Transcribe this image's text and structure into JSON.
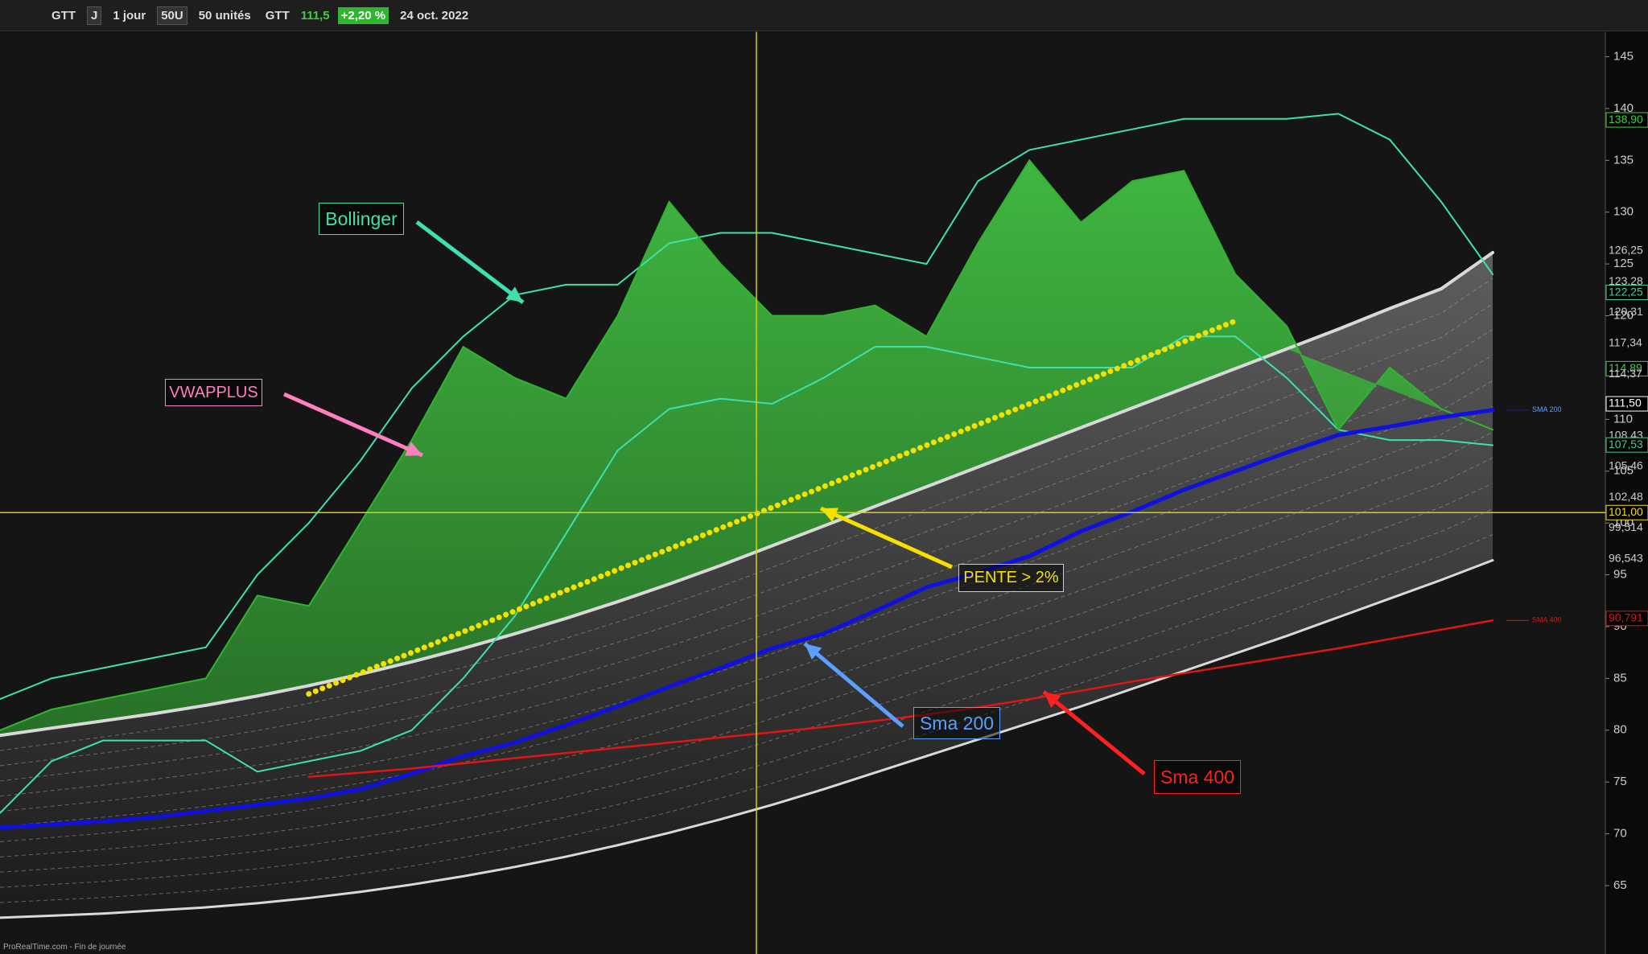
{
  "toolbar": {
    "symbol": "GTT",
    "period_short": "J",
    "period": "1 jour",
    "units_short": "50U",
    "units": "50 unités",
    "quote_symbol": "GTT",
    "quote_price": "111,5",
    "quote_change": "+2,20 %",
    "date": "24 oct. 2022"
  },
  "footer": "ProRealTime.com - Fin de journée",
  "chart_data": {
    "type": "line",
    "categories": [
      null,
      null,
      null,
      null,
      null,
      null,
      null,
      null,
      null,
      null,
      null,
      null,
      null,
      null,
      null,
      null,
      null,
      null,
      null,
      null,
      null,
      null,
      null,
      null,
      null,
      null,
      null,
      null,
      null,
      null
    ],
    "ylim": [
      58.4,
      147.4
    ],
    "yticks": [
      65,
      70,
      75,
      80,
      85,
      90,
      95,
      100,
      105,
      110,
      115,
      120,
      125,
      130,
      135,
      140,
      145
    ],
    "series": [
      {
        "color": "#d9d9d9",
        "values": [
          61.9,
          62.1,
          62.3,
          62.6,
          62.9,
          63.3,
          63.8,
          64.4,
          65.1,
          65.9,
          66.8,
          67.8,
          68.9,
          70.1,
          71.4,
          72.8,
          74.3,
          75.9,
          77.5,
          79.1,
          80.7,
          82.3,
          84,
          85.7,
          87.4,
          89.1,
          90.9,
          92.7,
          94.5,
          96.4
        ]
      },
      {
        "color": "#d9d9d9",
        "values": [
          79.5,
          80.2,
          80.9,
          81.6,
          82.4,
          83.3,
          84.3,
          85.4,
          86.6,
          87.9,
          89.3,
          90.8,
          92.4,
          94.1,
          95.9,
          97.8,
          99.7,
          101.6,
          103.5,
          105.4,
          107.3,
          109.2,
          111.1,
          113,
          114.9,
          116.8,
          118.7,
          120.7,
          122.6,
          126.1
        ]
      },
      {
        "color": "#3fe0b0",
        "values": [
          83,
          85,
          86,
          87,
          88,
          95,
          100,
          106,
          113,
          118,
          122,
          123,
          123,
          127,
          128,
          128,
          127,
          126,
          125,
          133,
          136,
          137,
          138,
          139,
          139,
          139,
          139.5,
          137,
          131,
          124
        ]
      },
      {
        "color": "#3fe0b0",
        "values": [
          72,
          77,
          79,
          79,
          79,
          76,
          77,
          78,
          80,
          85,
          91,
          99,
          107,
          111,
          112,
          111.5,
          114,
          117,
          117,
          116,
          115,
          115,
          115,
          118,
          118,
          114,
          109,
          108,
          108,
          107.5
        ]
      },
      {
        "color": "#2fb52f",
        "values": [
          80,
          82,
          83,
          84,
          85,
          93,
          92,
          100,
          108,
          117,
          114,
          112,
          120,
          131,
          125,
          120,
          120,
          121,
          118,
          127,
          135,
          129,
          133,
          134,
          124,
          119,
          109,
          115,
          111,
          109
        ]
      },
      {
        "color": "#1010e0",
        "values": [
          70.6,
          70.9,
          71.2,
          71.6,
          72.2,
          72.8,
          73.4,
          74.3,
          75.8,
          77.5,
          78.8,
          80.5,
          82.3,
          84.2,
          86,
          87.9,
          89.3,
          91.5,
          93.8,
          95.2,
          96.8,
          99.2,
          101.1,
          103.2,
          105,
          106.8,
          108.5,
          109.3,
          110.2,
          110.9
        ]
      },
      {
        "color": "#e01515",
        "values": [
          null,
          null,
          null,
          null,
          null,
          null,
          75.5,
          75.9,
          76.3,
          76.8,
          77.3,
          77.8,
          78.3,
          78.8,
          79.3,
          79.8,
          80.3,
          80.9,
          81.5,
          82.2,
          83,
          83.8,
          84.7,
          85.5,
          86.3,
          87.1,
          87.9,
          88.8,
          89.7,
          90.6
        ]
      },
      {
        "color": "#f5e000",
        "values": [
          null,
          null,
          null,
          null,
          null,
          null,
          83.5,
          85.5,
          87.5,
          89.5,
          91.5,
          93.5,
          95.5,
          97.5,
          99.5,
          101.5,
          103.5,
          105.5,
          107.5,
          109.5,
          111.5,
          113.5,
          115.5,
          117.5,
          119.5,
          null,
          null,
          null,
          null,
          null
        ]
      }
    ],
    "price_labels": [
      {
        "value": 138.9,
        "label": "138,90",
        "color": "#3fd03f"
      },
      {
        "value": 126.25,
        "label": "126,25",
        "color": "#cccccc"
      },
      {
        "value": 123.28,
        "label": "123,28",
        "color": "#cccccc"
      },
      {
        "value": 122.25,
        "label": "122,25",
        "color": "#3fd0a0"
      },
      {
        "value": 120.31,
        "label": "120,31",
        "color": "#cccccc"
      },
      {
        "value": 117.34,
        "label": "117,34",
        "color": "#cccccc"
      },
      {
        "value": 114.89,
        "label": "114,89",
        "color": "#3fd03f"
      },
      {
        "value": 114.37,
        "label": "114,37",
        "color": "#cccccc"
      },
      {
        "value": 111.5,
        "label": "111,50",
        "color": "#ffffff"
      },
      {
        "value": 108.43,
        "label": "108,43",
        "color": "#cccccc"
      },
      {
        "value": 107.53,
        "label": "107,53",
        "color": "#3fd0a0"
      },
      {
        "value": 105.46,
        "label": "105,46",
        "color": "#cccccc"
      },
      {
        "value": 102.48,
        "label": "102,48",
        "color": "#cccccc"
      },
      {
        "value": 101,
        "label": "101,00",
        "color": "#f5e000"
      },
      {
        "value": 99.514,
        "label": "99,514",
        "color": "#cccccc"
      },
      {
        "value": 96.543,
        "label": "96,543",
        "color": "#cccccc"
      },
      {
        "value": 90.791,
        "label": "90,791",
        "color": "#e01515"
      }
    ],
    "line_tags": [
      "SMA 200",
      "SMA 400"
    ],
    "annotations": [
      {
        "text": "Bollinger",
        "color": "#3fe0b0"
      },
      {
        "text": "VWAPPLUS",
        "color": "#ff7fc0"
      },
      {
        "text": "PENTE > 2%",
        "color": "#f5e000"
      },
      {
        "text": "Sma 200",
        "color": "#5aa0ff"
      },
      {
        "text": "Sma 400",
        "color": "#ff2020"
      }
    ]
  }
}
